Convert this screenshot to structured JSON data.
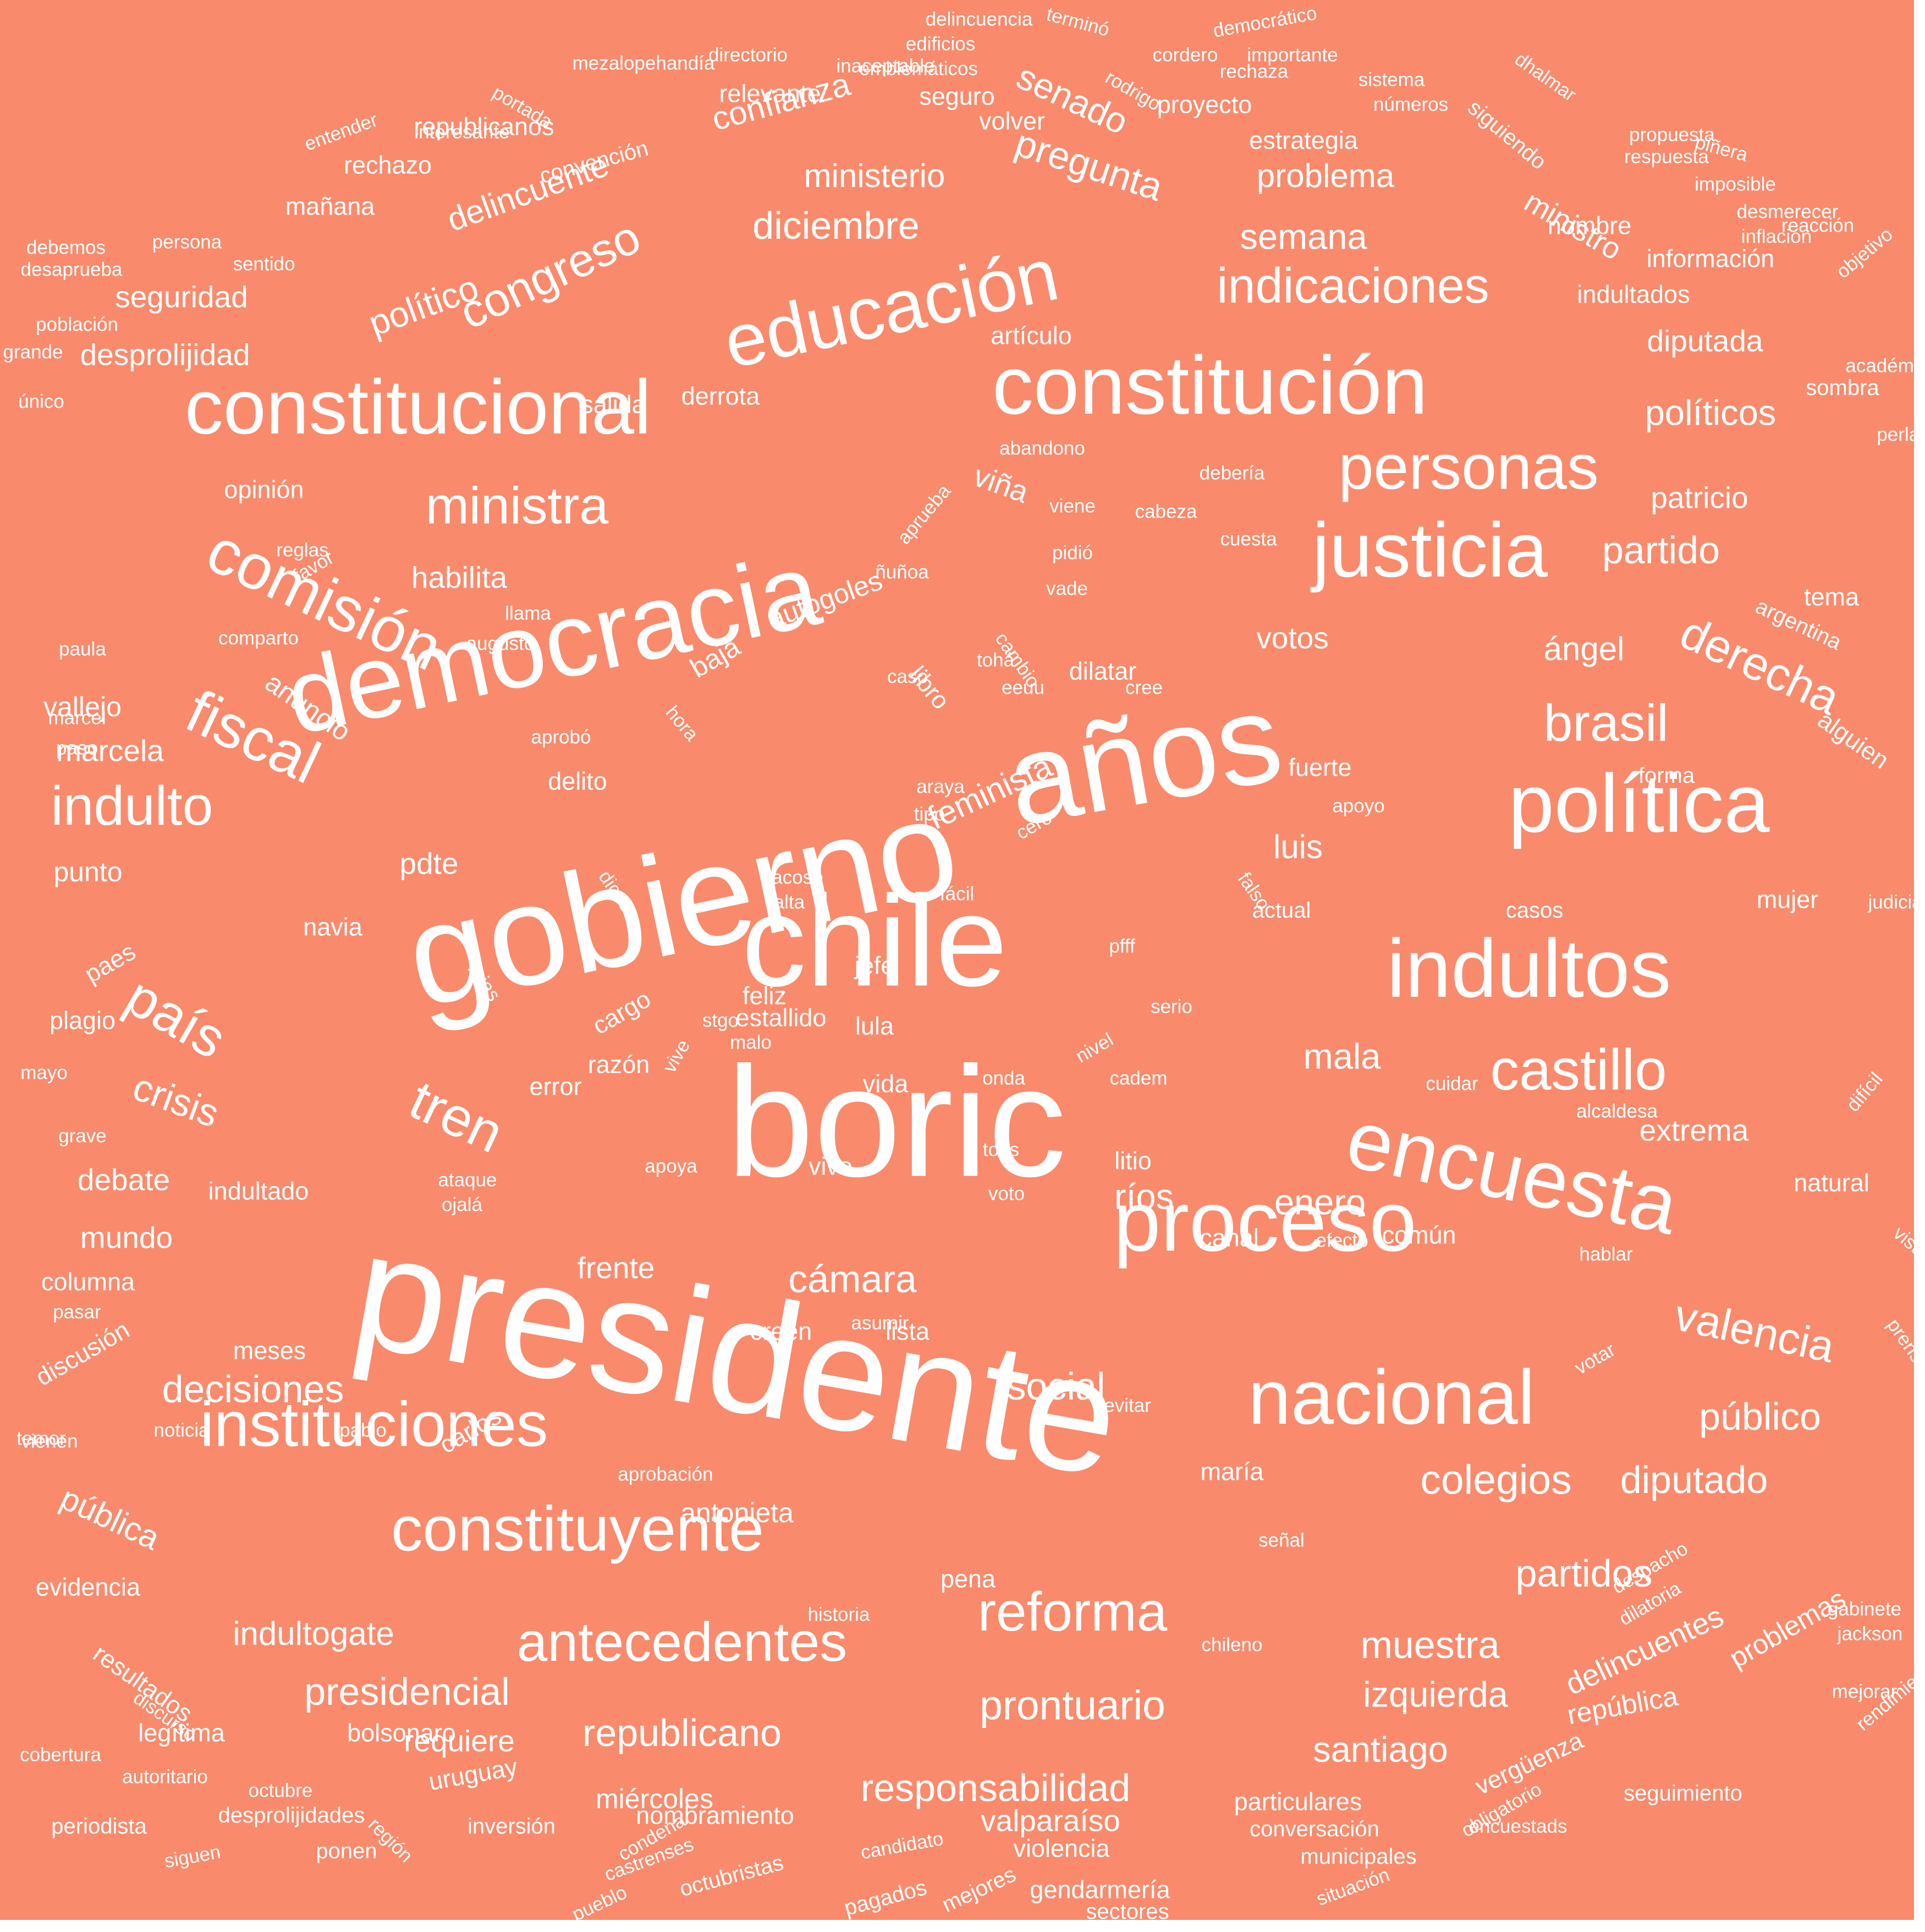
{
  "colors": {
    "background": "#fa8a6c",
    "text": "#ffffff"
  },
  "words": [
    "presidente",
    "boric",
    "gobierno",
    "chile",
    "años",
    "democracia",
    "constitución",
    "proceso",
    "encuesta",
    "indultos",
    "política",
    "justicia",
    "nacional",
    "educación",
    "constitucional",
    "comisión",
    "personas",
    "constituyente",
    "instituciones",
    "castillo",
    "fiscal",
    "antecedentes",
    "tren",
    "país",
    "reforma",
    "indicaciones",
    "ministra",
    "congreso",
    "brasil",
    "indulto",
    "valencia",
    "derecha",
    "crisis",
    "prontuario",
    "responsabilidad",
    "republicano",
    "colegios",
    "partidos",
    "diputado",
    "muestra",
    "presidencial",
    "cámara",
    "social",
    "público",
    "decisiones",
    "partido",
    "político",
    "pregunta",
    "diciembre",
    "semana",
    "senado",
    "delincuente",
    "confianza",
    "ministro",
    "políticos",
    "patricio",
    "pública",
    "delincuentes",
    "feminista",
    "izquierda",
    "santiago",
    "mala",
    "enero",
    "ríos",
    "indultogate",
    "luis",
    "habilita",
    "votos",
    "ángel",
    "viña",
    "autogoles",
    "baja",
    "anuncio",
    "república",
    "problemas",
    "alguien",
    "marcela",
    "vallejo",
    "seguridad",
    "desprolijidad",
    "diputada",
    "ministerio",
    "problema",
    "valparaíso",
    "antonieta",
    "miércoles",
    "punto",
    "pdte",
    "mundo",
    "debate",
    "extrema",
    "frente",
    "requiere",
    "opinión",
    "dilatar",
    "litio",
    "mujer",
    "delito",
    "fuerte",
    "libro",
    "cargo",
    "navia",
    "paes",
    "plagio",
    "error",
    "feliz",
    "lula",
    "jefe",
    "vida",
    "violencia",
    "nombramiento",
    "particulares",
    "uruguay",
    "legítima",
    "bolsonaro",
    "vergüenza",
    "carlos",
    "columna",
    "discusión",
    "resultados",
    "evidencia",
    "meses",
    "creen",
    "lista",
    "canal",
    "común",
    "efecto",
    "vivo",
    "pena",
    "maría",
    "indultado",
    "razón",
    "estallido",
    "republicanos",
    "rechazo",
    "mañana",
    "convención",
    "volver",
    "seguro",
    "relevante",
    "proyecto",
    "estrategia",
    "siguiendo",
    "indultados",
    "información",
    "nombre",
    "artículo",
    "salida",
    "derrota",
    "sombra",
    "tema",
    "argentina",
    "forma",
    "actual",
    "casos",
    "natural",
    "municipales",
    "conversación",
    "gendarmería",
    "sectores",
    "situación",
    "octubristas",
    "castrenses",
    "pagados",
    "mejores",
    "candidato",
    "condena",
    "pueblo",
    "inversión",
    "región",
    "ponen",
    "siguen",
    "periodista",
    "desprolijidades",
    "octubre",
    "autoritario",
    "discurso",
    "cobertura",
    "temor",
    "vienen",
    "noticia",
    "pablo",
    "aprobación",
    "historia",
    "chileno",
    "señal",
    "despacho",
    "dilatoria",
    "jackson",
    "gabinete",
    "mejorar",
    "rendimiento",
    "seguimiento",
    "encuestads",
    "obligatorio",
    "prensa",
    "vista",
    "votar",
    "hablar",
    "alcaldesa",
    "cuidar",
    "difícil",
    "judicial",
    "apoyo",
    "cero",
    "fácil",
    "falso",
    "pfff",
    "serio",
    "nivel",
    "cadem",
    "onda",
    "tods",
    "voto",
    "apoya",
    "ojalá",
    "ataque",
    "vive",
    "malo",
    "stgo",
    "dices",
    "rojas",
    "falta",
    "acoso",
    "aprobó",
    "tipo",
    "araya",
    "hora",
    "cree",
    "cambio",
    "caso",
    "eeuu",
    "tohá",
    "llama",
    "augusto",
    "favor",
    "comparto",
    "paula",
    "paso",
    "marcel",
    "reglas",
    "pidió",
    "cuesta",
    "cabeza",
    "viene",
    "ñuñoa",
    "vade",
    "aprueba",
    "abandono",
    "debería",
    "académico",
    "errores",
    "perlas",
    "único",
    "grande",
    "población",
    "desaprueba",
    "debemos",
    "persona",
    "sentido",
    "entender",
    "interesante",
    "portada",
    "directorio",
    "mezalopehandía",
    "inaceptable",
    "edificios",
    "emblemáticos",
    "delincuencia",
    "terminó",
    "rodrigo",
    "cordero",
    "importante",
    "rechaza",
    "democrático",
    "sistema",
    "números",
    "dhalmar",
    "propuesta",
    "piñera",
    "respuesta",
    "imposible",
    "desmerecer",
    "reacción",
    "inflación",
    "objetivo",
    "mayo",
    "grave",
    "pasar",
    "asumir",
    "evitar"
  ]
}
